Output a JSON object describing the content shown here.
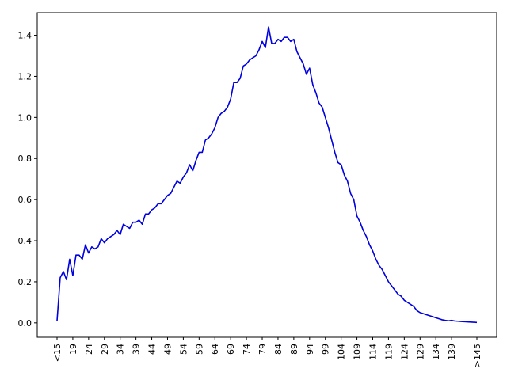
{
  "chart_data": {
    "type": "line",
    "title": "",
    "xlabel": "",
    "ylabel": "",
    "ylim": [
      -0.07,
      1.51
    ],
    "grid": false,
    "legend": "none",
    "line_color": "#0000e0",
    "xticks": [
      "<15",
      "19",
      "24",
      "29",
      "34",
      "39",
      "44",
      "49",
      "54",
      "59",
      "64",
      "69",
      "74",
      "79",
      "84",
      "89",
      "94",
      "99",
      "104",
      "109",
      "114",
      "119",
      "124",
      "129",
      "134",
      "139",
      ">145"
    ],
    "yticks": [
      0.0,
      0.2,
      0.4,
      0.6,
      0.8,
      1.0,
      1.2,
      1.4
    ],
    "ytick_labels": [
      "0.0",
      "0.2",
      "0.4",
      "0.6",
      "0.8",
      "1.0",
      "1.2",
      "1.4"
    ],
    "series": [
      {
        "values": [
          0.01,
          0.22,
          0.25,
          0.21,
          0.31,
          0.23,
          0.33,
          0.33,
          0.31,
          0.38,
          0.34,
          0.37,
          0.36,
          0.37,
          0.41,
          0.39,
          0.41,
          0.42,
          0.43,
          0.45,
          0.43,
          0.48,
          0.47,
          0.46,
          0.49,
          0.49,
          0.5,
          0.48,
          0.53,
          0.53,
          0.55,
          0.56,
          0.58,
          0.58,
          0.6,
          0.62,
          0.63,
          0.66,
          0.69,
          0.68,
          0.71,
          0.73,
          0.77,
          0.74,
          0.79,
          0.83,
          0.83,
          0.89,
          0.9,
          0.92,
          0.95,
          1.0,
          1.02,
          1.03,
          1.05,
          1.09,
          1.17,
          1.17,
          1.19,
          1.25,
          1.26,
          1.28,
          1.29,
          1.3,
          1.33,
          1.37,
          1.34,
          1.44,
          1.36,
          1.36,
          1.38,
          1.37,
          1.39,
          1.39,
          1.37,
          1.38,
          1.32,
          1.29,
          1.26,
          1.21,
          1.24,
          1.16,
          1.12,
          1.07,
          1.05,
          1.0,
          0.95,
          0.89,
          0.83,
          0.78,
          0.77,
          0.72,
          0.69,
          0.63,
          0.6,
          0.52,
          0.49,
          0.45,
          0.42,
          0.38,
          0.35,
          0.31,
          0.28,
          0.26,
          0.23,
          0.2,
          0.18,
          0.16,
          0.14,
          0.13,
          0.11,
          0.1,
          0.09,
          0.08,
          0.06,
          0.05,
          0.045,
          0.04,
          0.035,
          0.03,
          0.025,
          0.02,
          0.015,
          0.012,
          0.01,
          0.012,
          0.009,
          0.008,
          0.007,
          0.006,
          0.005,
          0.004,
          0.003,
          0.002
        ]
      }
    ]
  }
}
